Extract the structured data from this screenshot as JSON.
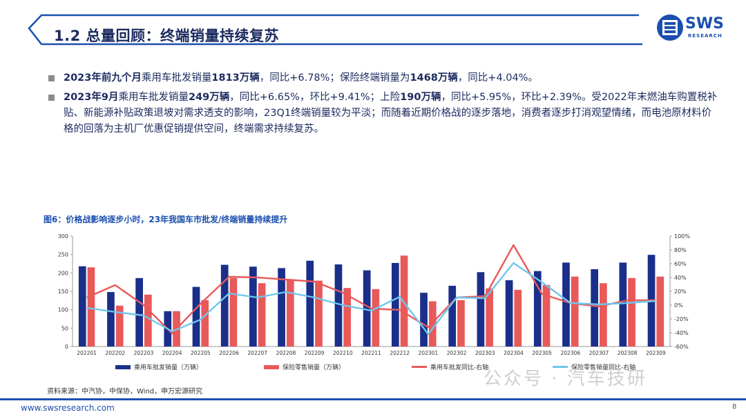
{
  "header": {
    "title": "1.2 总量回顾：终端销量持续复苏",
    "logo_text": "SWS",
    "logo_sub": "RESEARCH"
  },
  "bullets": [
    {
      "segments": [
        {
          "text": "2023年前九个月",
          "bold": true
        },
        {
          "text": "乘用车批发销量",
          "bold": false
        },
        {
          "text": "1813万辆",
          "bold": true
        },
        {
          "text": "，同比+6.78%；保险终端销量为",
          "bold": false
        },
        {
          "text": "1468万辆",
          "bold": true
        },
        {
          "text": "，同比+4.04%。",
          "bold": false
        }
      ]
    },
    {
      "segments": [
        {
          "text": "2023年9月",
          "bold": true
        },
        {
          "text": "乘用车批发销量",
          "bold": false
        },
        {
          "text": "249万辆",
          "bold": true
        },
        {
          "text": "，同比+6.65%，环比+9.41%；上险",
          "bold": false
        },
        {
          "text": "190万辆",
          "bold": true
        },
        {
          "text": "，同比+5.95%，环比+2.39%。受2022年末燃油车购置税补贴、新能源补贴政策退坡对需求透支的影响，23Q1终端销量较为平淡；而随着近期价格战的逐步落地，消费者逐步打消观望情绪，而电池原材料价格的回落为主机厂优惠促销提供空间，终端需求持续复苏。",
          "bold": false
        }
      ]
    }
  ],
  "figure_title": "图6：价格战影响逐步小时，23年我国车市批发/终端销量持续提升",
  "source": "资料来源：中汽协，中保协，Wind，申万宏源研究",
  "footer": {
    "url": "www.swsresearch.com",
    "page": "8"
  },
  "watermark": "公众号 · 汽车技研",
  "colors": {
    "wholesale": "#1a2f8a",
    "retail": "#e8595a",
    "wholesale_yoy": "#e8595a",
    "retail_yoy": "#6ec6ee",
    "title": "#1b2a5e",
    "accent": "#1b4fae"
  },
  "chart_data": {
    "type": "bar",
    "categories": [
      "202201",
      "202202",
      "202203",
      "202204",
      "202205",
      "202206",
      "202207",
      "202208",
      "202209",
      "202210",
      "202211",
      "202212",
      "202301",
      "202302",
      "202303",
      "202304",
      "202305",
      "202306",
      "202307",
      "202308",
      "202309"
    ],
    "series": [
      {
        "name": "乘用车批发销量（万辆）",
        "type": "bar",
        "axis": "left",
        "values": [
          218,
          148,
          186,
          96,
          162,
          222,
          217,
          213,
          233,
          223,
          207,
          227,
          146,
          165,
          202,
          180,
          205,
          228,
          210,
          228,
          249
        ]
      },
      {
        "name": "保险零售销量（万辆）",
        "type": "bar",
        "axis": "left",
        "values": [
          215,
          111,
          141,
          96,
          126,
          186,
          172,
          183,
          179,
          159,
          156,
          247,
          123,
          126,
          158,
          154,
          167,
          190,
          172,
          186,
          190
        ]
      },
      {
        "name": "乘用车批发同比-右轴",
        "type": "line",
        "axis": "right",
        "values": [
          11,
          29,
          0,
          -41,
          2,
          41,
          40,
          37,
          34,
          18,
          -5,
          -7,
          -32,
          11,
          13,
          87,
          16,
          3,
          -2,
          7,
          7
        ]
      },
      {
        "name": "保险零售销量同比-右轴",
        "type": "line",
        "axis": "right",
        "values": [
          -4,
          -10,
          -15,
          -38,
          -21,
          17,
          11,
          19,
          11,
          0,
          -8,
          12,
          -42,
          11,
          10,
          61,
          33,
          3,
          1,
          3,
          6
        ]
      }
    ],
    "y_left": {
      "min": 0,
      "max": 300,
      "ticks": [
        "0",
        "50",
        "100",
        "150",
        "200",
        "250",
        "300"
      ]
    },
    "y_right": {
      "min": -60,
      "max": 100,
      "ticks": [
        "-60%",
        "-40%",
        "-20%",
        "0%",
        "20%",
        "40%",
        "60%",
        "80%",
        "100%"
      ]
    },
    "grid": false,
    "legend_position": "bottom"
  }
}
